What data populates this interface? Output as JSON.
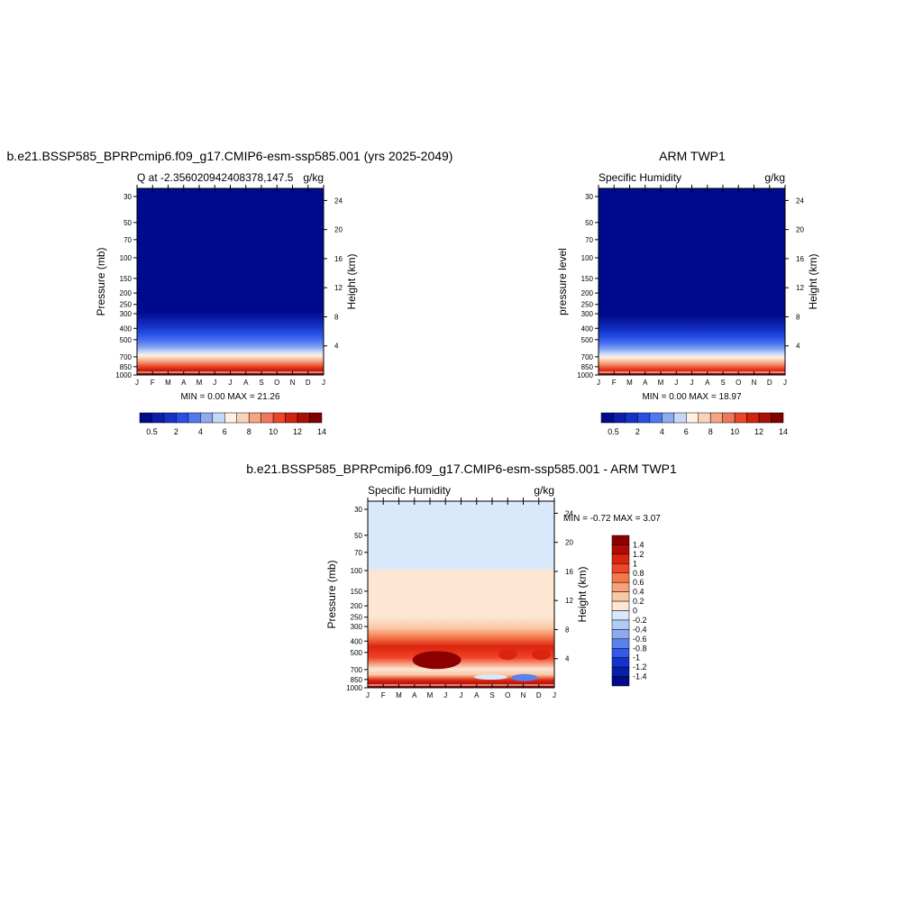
{
  "chart_data": [
    {
      "type": "heatmap",
      "title": "b.e21.BSSP585_BPRPcmip6.f09_g17.CMIP6-esm-ssp585.001 (yrs 2025-2049)",
      "left_subtitle": "Q at -2.356020942408378,147.5",
      "right_subtitle": "g/kg",
      "ylabel": "Pressure (mb)",
      "ylabel_right": "Height (km)",
      "x_ticks": [
        "J",
        "F",
        "M",
        "A",
        "M",
        "J",
        "J",
        "A",
        "S",
        "O",
        "N",
        "D",
        "J"
      ],
      "y_ticks": [
        "30",
        "50",
        "70",
        "100",
        "150",
        "200",
        "250",
        "300",
        "400",
        "500",
        "700",
        "850",
        "1000"
      ],
      "y_ticks_right": [
        "24",
        "20",
        "16",
        "12",
        "8",
        "4"
      ],
      "min_max_text": "MIN =   0.00 MAX =  21.26",
      "min": 0.0,
      "max": 21.26,
      "ylim": [
        1000,
        30
      ],
      "colorbar_ticks": [
        "0.5",
        "2",
        "4",
        "6",
        "8",
        "10",
        "12",
        "14"
      ],
      "colorbar_colors": [
        "#000a8c",
        "#0a1eaa",
        "#1432c8",
        "#2850e6",
        "#5078f0",
        "#8cabf0",
        "#c3d8fa",
        "#fff0e1",
        "#fad2b9",
        "#f5a582",
        "#f0785a",
        "#eb4628",
        "#d2230f",
        "#aa0f05",
        "#800000"
      ]
    },
    {
      "type": "heatmap",
      "title": "ARM TWP1",
      "left_subtitle": "Specific Humidity",
      "right_subtitle": "g/kg",
      "ylabel": "pressure level",
      "ylabel_right": "Height (km)",
      "x_ticks": [
        "J",
        "F",
        "M",
        "A",
        "M",
        "J",
        "J",
        "A",
        "S",
        "O",
        "N",
        "D",
        "J"
      ],
      "y_ticks": [
        "30",
        "50",
        "70",
        "100",
        "150",
        "200",
        "250",
        "300",
        "400",
        "500",
        "700",
        "850",
        "1000"
      ],
      "y_ticks_right": [
        "24",
        "20",
        "16",
        "12",
        "8",
        "4"
      ],
      "min_max_text": "MIN =   0.00 MAX =  18.97",
      "min": 0.0,
      "max": 18.97,
      "ylim": [
        1000,
        30
      ],
      "colorbar_ticks": [
        "0.5",
        "2",
        "4",
        "6",
        "8",
        "10",
        "12",
        "14"
      ],
      "colorbar_colors": [
        "#000a8c",
        "#0a1eaa",
        "#1432c8",
        "#2850e6",
        "#5078f0",
        "#8cabf0",
        "#c3d8fa",
        "#fff0e1",
        "#fad2b9",
        "#f5a582",
        "#f0785a",
        "#eb4628",
        "#d2230f",
        "#aa0f05",
        "#800000"
      ]
    },
    {
      "type": "heatmap",
      "title": "b.e21.BSSP585_BPRPcmip6.f09_g17.CMIP6-esm-ssp585.001 - ARM TWP1",
      "left_subtitle": "Specific Humidity",
      "right_subtitle": "g/kg",
      "ylabel": "Pressure (mb)",
      "ylabel_right": "Height (km)",
      "x_ticks": [
        "J",
        "F",
        "M",
        "A",
        "M",
        "J",
        "J",
        "A",
        "S",
        "O",
        "N",
        "D",
        "J"
      ],
      "y_ticks": [
        "30",
        "50",
        "70",
        "100",
        "150",
        "200",
        "250",
        "300",
        "400",
        "500",
        "700",
        "850",
        "1000"
      ],
      "y_ticks_right": [
        "24",
        "20",
        "16",
        "12",
        "8",
        "4"
      ],
      "min_max_text": "MIN =  -0.72 MAX =   3.07",
      "min": -0.72,
      "max": 3.07,
      "ylim": [
        1000,
        30
      ],
      "colorbar_ticks": [
        "1.4",
        "1.2",
        "1",
        "0.8",
        "0.6",
        "0.4",
        "0.2",
        "0",
        "-0.2",
        "-0.4",
        "-0.6",
        "-0.8",
        "-1",
        "-1.2",
        "-1.4"
      ],
      "colorbar_colors": [
        "#8c0000",
        "#b40a05",
        "#dc230f",
        "#f04628",
        "#f5784b",
        "#f8a078",
        "#fac8a5",
        "#fde6d2",
        "#d7e9fb",
        "#b0ccf5",
        "#8caaf0",
        "#5a82eb",
        "#325ae6",
        "#1432d2",
        "#0a1eaa",
        "#000a8c"
      ]
    }
  ]
}
